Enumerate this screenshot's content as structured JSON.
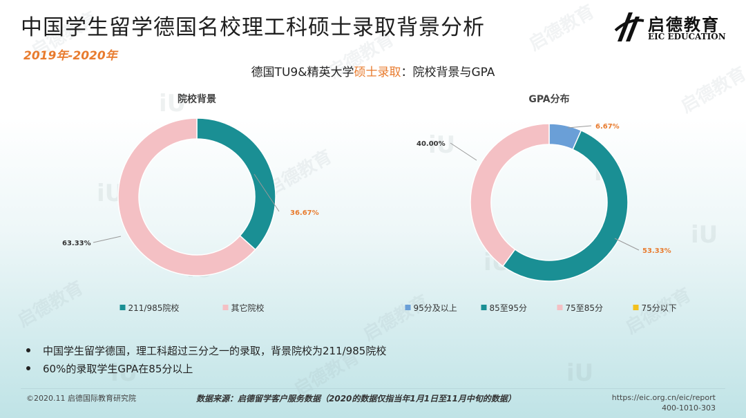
{
  "page": {
    "title": "中国学生留学德国名校理工科硕士录取背景分析",
    "subtitle": "2019年-2020年",
    "logo_cn": "启德教育",
    "logo_en": "EIC EDUCATION",
    "heading_pre": "德国TU9&精英大学",
    "heading_hl": "硕士录取",
    "heading_post": "：院校背景与GPA",
    "watermark_text": "启德教育",
    "watermark_mark": "iU",
    "colors": {
      "accent_orange": "#e87b2e",
      "teal": "#1a8f94",
      "pink": "#f4c0c4",
      "blue": "#6a9fd7",
      "yellow": "#f2c01e"
    }
  },
  "bullets": [
    "中国学生留学德国，理工科超过三分之一的录取，背景院校为211/985院校",
    "60%的录取学生GPA在85分以上"
  ],
  "footer": {
    "left": "©2020.11 启德国际教育研究院",
    "middle": "数据来源：启德留学客户服务数据（2020的数据仅指当年1月1日至11月中旬的数据）",
    "right_url": "https://eic.org.cn/eic/report",
    "right_phone": "400-1010-303"
  },
  "chart_data": [
    {
      "type": "pie",
      "title": "院校背景",
      "categories": [
        "211/985院校",
        "其它院校"
      ],
      "values": [
        36.67,
        63.33
      ],
      "labels": [
        "36.67%",
        "63.33%"
      ],
      "colors": [
        "#1a8f94",
        "#f4c0c4"
      ],
      "legend_position": "bottom"
    },
    {
      "type": "pie",
      "title": "GPA分布",
      "categories": [
        "95分及以上",
        "85至95分",
        "75至85分",
        "75分以下"
      ],
      "values": [
        6.67,
        53.33,
        40.0,
        0
      ],
      "labels": [
        "6.67%",
        "53.33%",
        "40.00%",
        ""
      ],
      "colors": [
        "#6a9fd7",
        "#1a8f94",
        "#f4c0c4",
        "#f2c01e"
      ],
      "legend_position": "bottom"
    }
  ]
}
